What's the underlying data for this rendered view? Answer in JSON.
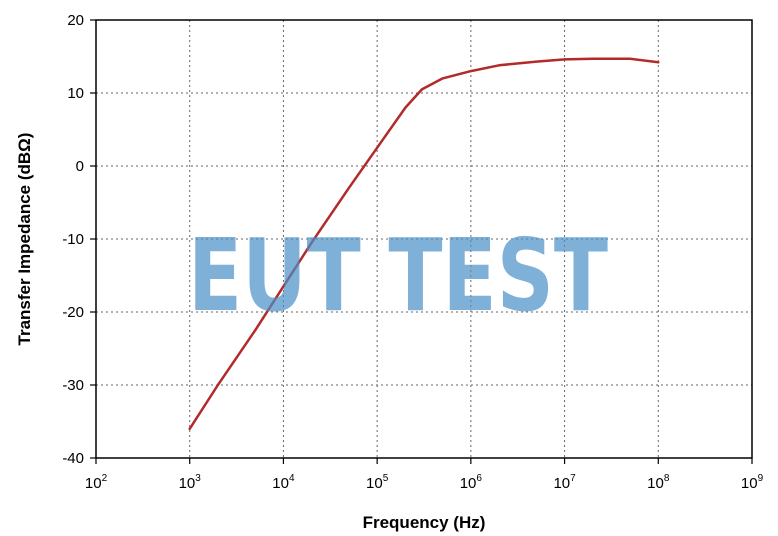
{
  "chart_data": {
    "type": "line",
    "xlabel": "Frequency (Hz)",
    "ylabel": "Transfer Impedance (dBΩ)",
    "xscale": "log",
    "xlim": [
      100,
      1000000000
    ],
    "ylim": [
      -40,
      20
    ],
    "grid": true,
    "x_ticks": [
      {
        "base": "10",
        "exp": "2"
      },
      {
        "base": "10",
        "exp": "3"
      },
      {
        "base": "10",
        "exp": "4"
      },
      {
        "base": "10",
        "exp": "5"
      },
      {
        "base": "10",
        "exp": "6"
      },
      {
        "base": "10",
        "exp": "7"
      },
      {
        "base": "10",
        "exp": "8"
      },
      {
        "base": "10",
        "exp": "9"
      }
    ],
    "y_ticks": [
      "20",
      "10",
      "0",
      "-10",
      "-20",
      "-30",
      "-40"
    ],
    "series": [
      {
        "color": "#b22a2a",
        "x": [
          1000,
          2000,
          5000,
          10000,
          20000,
          50000,
          100000,
          200000,
          300000,
          500000,
          1000000,
          2000000,
          5000000,
          10000000,
          20000000,
          50000000,
          100000000
        ],
        "y": [
          -36,
          -30,
          -22.5,
          -16.5,
          -10.5,
          -3,
          2.5,
          8,
          10.5,
          12,
          13,
          13.8,
          14.3,
          14.6,
          14.7,
          14.7,
          14.2
        ]
      }
    ]
  },
  "watermark": {
    "text": "EUT TEST",
    "color": "#4a90c8"
  }
}
